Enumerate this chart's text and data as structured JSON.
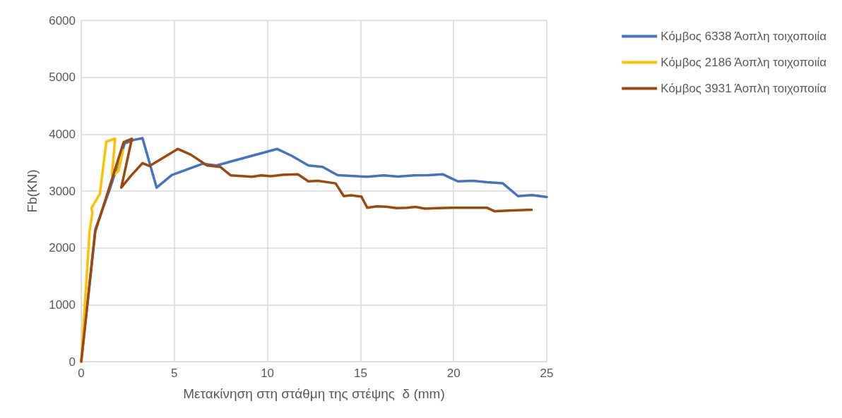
{
  "chart_data": {
    "type": "line",
    "xlabel": "Μετακίνηση στη στάθμη της στέψης  δ (mm)",
    "ylabel": "Fb(KN)",
    "xlim": [
      0,
      25
    ],
    "xticks": [
      0,
      5,
      10,
      15,
      20,
      25
    ],
    "ylim": [
      0,
      6000
    ],
    "yticks": [
      0,
      1000,
      2000,
      3000,
      4000,
      5000,
      6000
    ],
    "grid": true,
    "legend": "right",
    "marker": "none",
    "line_style": "solid",
    "series": [
      {
        "name": "Κόμβος 6338 Άοπλη τοιχοποιία",
        "color": "#4472c4",
        "x": [
          0,
          0.76,
          1.5,
          2.34,
          2.85,
          3.29,
          4.05,
          4.86,
          6.51,
          7.27,
          8.16,
          9.17,
          10.53,
          11.3,
          12.2,
          12.96,
          13.77,
          15.36,
          16.24,
          17.0,
          17.9,
          18.65,
          19.41,
          20.22,
          21.05,
          21.8,
          22.64,
          23.46,
          24.2,
          25
        ],
        "values": [
          0,
          2330,
          3000,
          3840,
          3900,
          3930,
          3060,
          3280,
          3480,
          3450,
          3530,
          3620,
          3740,
          3620,
          3450,
          3425,
          3280,
          3250,
          3275,
          3255,
          3275,
          3280,
          3295,
          3170,
          3180,
          3155,
          3135,
          2910,
          2930,
          2895
        ]
      },
      {
        "name": "Κόμβος 2186 Άοπλη τοιχοποιία",
        "color": "#ffc000",
        "x": [
          0,
          0.45,
          0.6,
          0.55,
          1.0,
          1.35,
          1.82,
          1.65,
          1.85,
          2.1,
          2.25,
          2.0,
          1.7
        ],
        "values": [
          0,
          2300,
          2620,
          2700,
          2950,
          3870,
          3920,
          3280,
          3400,
          3650,
          3720,
          3350,
          3280
        ]
      },
      {
        "name": "Κόμβος 3931 Άοπλη τοιχοποιία",
        "color": "#9e480e",
        "x": [
          0,
          0.75,
          2.28,
          2.72,
          2.15,
          2.66,
          3.29,
          3.67,
          5.19,
          5.88,
          6.76,
          7.46,
          8.03,
          9.17,
          9.67,
          10.18,
          10.81,
          11.63,
          12.2,
          12.71,
          13.66,
          14.1,
          14.48,
          15.05,
          15.36,
          15.87,
          16.38,
          16.95,
          17.51,
          17.96,
          18.46,
          19.16,
          19.92,
          21.8,
          22.19,
          22.95,
          24.19
        ],
        "values": [
          0,
          2280,
          3860,
          3920,
          3060,
          3265,
          3490,
          3440,
          3740,
          3640,
          3450,
          3425,
          3275,
          3250,
          3275,
          3260,
          3285,
          3295,
          3170,
          3180,
          3135,
          2910,
          2925,
          2900,
          2705,
          2730,
          2725,
          2700,
          2705,
          2720,
          2690,
          2700,
          2705,
          2705,
          2645,
          2655,
          2670
        ]
      }
    ]
  }
}
